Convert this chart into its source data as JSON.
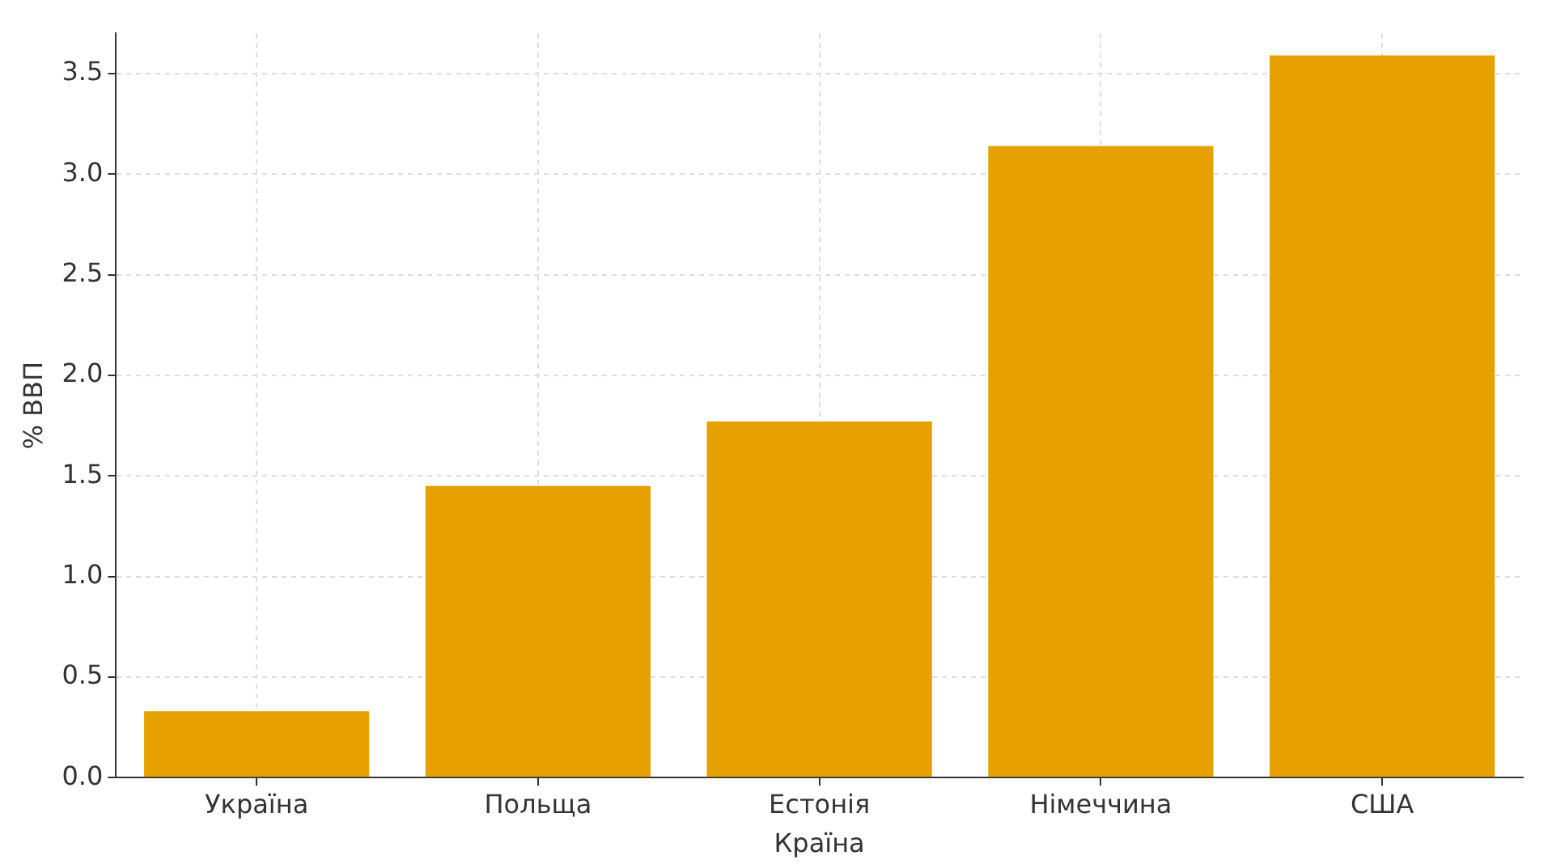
{
  "chart_data": {
    "type": "bar",
    "xlabel": "Країна",
    "ylabel": "% ВВП",
    "categories": [
      "Україна",
      "Польща",
      "Естонія",
      "Німеччина",
      "США"
    ],
    "values": [
      0.33,
      1.45,
      1.77,
      3.14,
      3.59
    ],
    "color": "#e6a000",
    "ylim": [
      0,
      3.7
    ],
    "yticks": [
      {
        "value": 0,
        "label": "0.0"
      },
      0.5,
      {
        "value": 1,
        "label": "1.0"
      },
      1.5,
      {
        "value": 2,
        "label": "2.0"
      },
      2.5,
      {
        "value": 3,
        "label": "3.0"
      },
      3.5
    ],
    "grid": true,
    "legend": false
  }
}
